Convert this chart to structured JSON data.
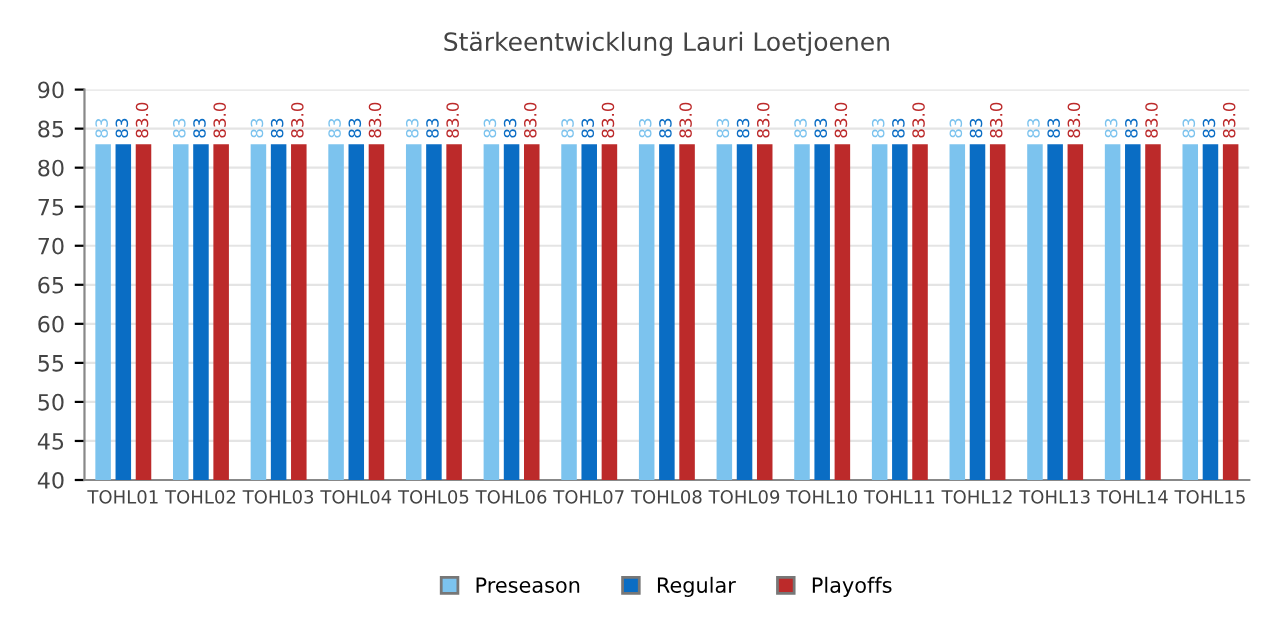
{
  "chart_data": {
    "type": "bar",
    "title": "Stärkeentwicklung Lauri Loetjoenen",
    "categories": [
      "TOHL01",
      "TOHL02",
      "TOHL03",
      "TOHL04",
      "TOHL05",
      "TOHL06",
      "TOHL07",
      "TOHL08",
      "TOHL09",
      "TOHL10",
      "TOHL11",
      "TOHL12",
      "TOHL13",
      "TOHL14",
      "TOHL15"
    ],
    "series": [
      {
        "name": "Preseason",
        "color": "#7cc3ee",
        "values": [
          83,
          83,
          83,
          83,
          83,
          83,
          83,
          83,
          83,
          83,
          83,
          83,
          83,
          83,
          83
        ],
        "value_labels": [
          "83",
          "83",
          "83",
          "83",
          "83",
          "83",
          "83",
          "83",
          "83",
          "83",
          "83",
          "83",
          "83",
          "83",
          "83"
        ]
      },
      {
        "name": "Regular",
        "color": "#0a6dc4",
        "values": [
          83,
          83,
          83,
          83,
          83,
          83,
          83,
          83,
          83,
          83,
          83,
          83,
          83,
          83,
          83
        ],
        "value_labels": [
          "83",
          "83",
          "83",
          "83",
          "83",
          "83",
          "83",
          "83",
          "83",
          "83",
          "83",
          "83",
          "83",
          "83",
          "83"
        ]
      },
      {
        "name": "Playoffs",
        "color": "#bc2a2a",
        "values": [
          83,
          83,
          83,
          83,
          83,
          83,
          83,
          83,
          83,
          83,
          83,
          83,
          83,
          83,
          83
        ],
        "value_labels": [
          "83.0",
          "83.0",
          "83.0",
          "83.0",
          "83.0",
          "83.0",
          "83.0",
          "83.0",
          "83.0",
          "83.0",
          "83.0",
          "83.0",
          "83.0",
          "83.0",
          "83.0"
        ]
      }
    ],
    "ylim": [
      40,
      90
    ],
    "yticks": [
      40,
      45,
      50,
      55,
      60,
      65,
      70,
      75,
      80,
      85,
      90
    ],
    "grid": "y",
    "legend": "bottom"
  }
}
